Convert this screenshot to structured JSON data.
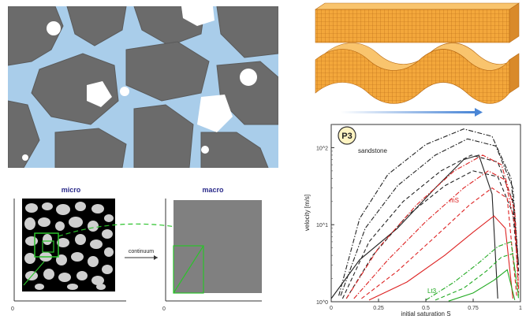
{
  "micro_macro": {
    "micro_label": "micro",
    "macro_label": "macro",
    "arrow_label": "continuum",
    "micro_axis_origin": "0",
    "macro_axis_origin": "0"
  },
  "plot": {
    "panel_label": "P3",
    "label_sandstone": "sandstone",
    "label_ms": "mS",
    "label_lt3": "Lt3",
    "ylabel": "velocity [m/s]",
    "xlabel": "initial saturation S",
    "colors": {
      "sandstone": "#222222",
      "ms": "#dd2222",
      "lt3": "#22aa22"
    }
  },
  "chart_data": {
    "type": "line",
    "xlabel": "initial saturation S",
    "ylabel": "velocity [m/s]",
    "xlim": [
      0,
      1
    ],
    "ylim": [
      1,
      200
    ],
    "yscale": "log",
    "xticks": [
      "0",
      "0.25",
      "0.5",
      "0.75",
      "1"
    ],
    "yticks": [
      "10^0",
      "10^1",
      "10^2"
    ],
    "series": [
      {
        "name": "sandstone",
        "color": "#222222",
        "style": "dashdot",
        "x": [
          0.04,
          0.15,
          0.3,
          0.5,
          0.7,
          0.85,
          0.95,
          0.99
        ],
        "y": [
          1.2,
          12,
          45,
          110,
          175,
          140,
          40,
          3
        ]
      },
      {
        "name": "sandstone",
        "color": "#222222",
        "style": "dashdot",
        "x": [
          0.05,
          0.18,
          0.35,
          0.55,
          0.72,
          0.87,
          0.96,
          0.99
        ],
        "y": [
          1.2,
          9,
          32,
          80,
          130,
          105,
          30,
          3
        ]
      },
      {
        "name": "sandstone",
        "color": "#222222",
        "style": "dashed",
        "x": [
          0.06,
          0.2,
          0.38,
          0.58,
          0.74,
          0.88,
          0.96,
          0.99
        ],
        "y": [
          1.1,
          6,
          20,
          50,
          80,
          65,
          20,
          2.5
        ]
      },
      {
        "name": "sandstone",
        "color": "#222222",
        "style": "dashed",
        "x": [
          0.08,
          0.22,
          0.4,
          0.6,
          0.75,
          0.88,
          0.96,
          0.99
        ],
        "y": [
          1.1,
          4,
          13,
          32,
          50,
          42,
          14,
          2.2
        ]
      },
      {
        "name": "sandstone",
        "color": "#222222",
        "style": "solid",
        "x": [
          0.0,
          0.15,
          0.35,
          0.55,
          0.7,
          0.78,
          0.85,
          0.88
        ],
        "y": [
          1.1,
          3.5,
          9,
          30,
          70,
          80,
          25,
          1.1
        ]
      },
      {
        "name": "mS",
        "color": "#dd2222",
        "style": "dashdot",
        "x": [
          0.08,
          0.25,
          0.45,
          0.65,
          0.8,
          0.9,
          0.97,
          0.99
        ],
        "y": [
          1.1,
          5,
          18,
          50,
          80,
          60,
          15,
          1.5
        ]
      },
      {
        "name": "mS",
        "color": "#dd2222",
        "style": "dashdot",
        "x": [
          0.12,
          0.3,
          0.5,
          0.7,
          0.83,
          0.92,
          0.97,
          0.99
        ],
        "y": [
          1.1,
          3.5,
          11,
          30,
          50,
          38,
          10,
          1.3
        ]
      },
      {
        "name": "mS",
        "color": "#dd2222",
        "style": "dashed",
        "x": [
          0.16,
          0.35,
          0.55,
          0.73,
          0.85,
          0.93,
          0.98
        ],
        "y": [
          1.1,
          2.5,
          7,
          18,
          30,
          22,
          1.2
        ]
      },
      {
        "name": "mS",
        "color": "#dd2222",
        "style": "solid",
        "x": [
          0.2,
          0.4,
          0.6,
          0.75,
          0.86,
          0.92,
          0.96
        ],
        "y": [
          1.05,
          1.8,
          4,
          8,
          13,
          9,
          1.1
        ]
      },
      {
        "name": "Lt3",
        "color": "#22aa22",
        "style": "dashdot",
        "x": [
          0.5,
          0.65,
          0.78,
          0.88,
          0.95,
          0.99
        ],
        "y": [
          1.05,
          1.8,
          3.2,
          5.2,
          6,
          1.2
        ]
      },
      {
        "name": "Lt3",
        "color": "#22aa22",
        "style": "dashed",
        "x": [
          0.55,
          0.7,
          0.82,
          0.9,
          0.96,
          0.99
        ],
        "y": [
          1.05,
          1.5,
          2.5,
          3.8,
          4.2,
          1.1
        ]
      },
      {
        "name": "Lt3",
        "color": "#22aa22",
        "style": "solid",
        "x": [
          0.62,
          0.75,
          0.86,
          0.93,
          0.97
        ],
        "y": [
          1.02,
          1.3,
          1.9,
          2.6,
          1.05
        ]
      }
    ]
  }
}
